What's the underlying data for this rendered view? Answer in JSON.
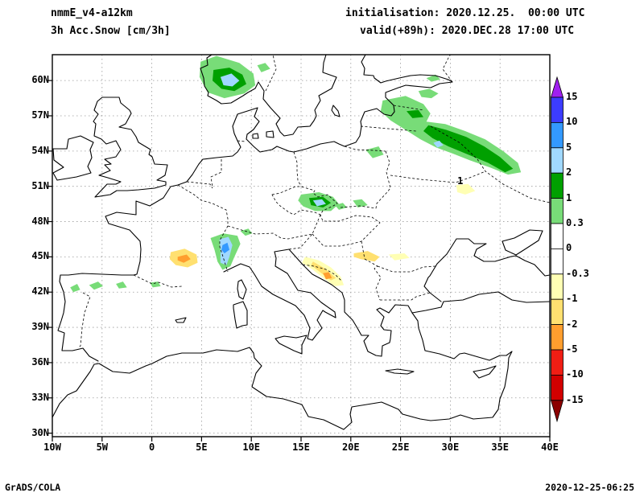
{
  "header": {
    "model": "nmmE_v4-a12km",
    "field": "3h Acc.Snow [cm/3h]",
    "init": "initialisation: 2020.12.25.  00:00 UTC",
    "valid": "valid(+89h): 2020.DEC.28 17:00 UTC"
  },
  "footer": {
    "left": "GrADS/COLA",
    "right": "2020-12-25-06:25"
  },
  "chart_data": {
    "type": "heatmap",
    "title": "3h Acc.Snow [cm/3h]",
    "model": "nmmE_v4-a12km",
    "initialisation": "2020.12.25. 00:00 UTC",
    "valid": "(+89h) 2020.DEC.28 17:00 UTC",
    "units": "cm/3h",
    "map_extent": {
      "lon_min": -10,
      "lon_max": 40,
      "lat_min": 29.7,
      "lat_max": 62.2
    },
    "lon_ticks": [
      "10W",
      "5W",
      "0",
      "5E",
      "10E",
      "15E",
      "20E",
      "25E",
      "30E",
      "35E",
      "40E"
    ],
    "lat_ticks": [
      "30N",
      "33N",
      "36N",
      "39N",
      "42N",
      "45N",
      "48N",
      "51N",
      "54N",
      "57N",
      "60N"
    ],
    "colorbar": {
      "tick_labels": [
        "15",
        "10",
        "5",
        "2",
        "1",
        "0.3",
        "0",
        "-0.3",
        "-1",
        "-2",
        "-5",
        "-10",
        "-15"
      ],
      "colors_top_to_bottom": [
        "#a020f0",
        "#3c3cff",
        "#3399ff",
        "#a0d8ff",
        "#00a000",
        "#78dc78",
        "#ffffff",
        "#ffffff",
        "#ffffb4",
        "#ffe070",
        "#ff9e2e",
        "#f01e14",
        "#d20000",
        "#8c0000"
      ]
    },
    "annotations": [
      {
        "text": "1",
        "lon": 31.0,
        "lat": 51.2
      }
    ],
    "features": [
      {
        "name": "norway-snow-outer",
        "value_range": "0.3-1",
        "color": "#78dc78",
        "points": [
          [
            4.9,
            61.6
          ],
          [
            6.5,
            62.1
          ],
          [
            8.8,
            61.5
          ],
          [
            10.2,
            60.6
          ],
          [
            10.4,
            59.6
          ],
          [
            9.3,
            58.9
          ],
          [
            7.3,
            58.5
          ],
          [
            5.6,
            59.0
          ],
          [
            4.8,
            60.3
          ]
        ]
      },
      {
        "name": "norway-snow-mid",
        "value_range": "1-2",
        "color": "#00a000",
        "points": [
          [
            6.2,
            60.9
          ],
          [
            7.8,
            61.1
          ],
          [
            9.1,
            60.5
          ],
          [
            9.5,
            59.7
          ],
          [
            8.3,
            59.1
          ],
          [
            7.0,
            59.3
          ],
          [
            6.1,
            60.0
          ]
        ]
      },
      {
        "name": "norway-snow-core",
        "value_range": "2-5",
        "color": "#a0d8ff",
        "points": [
          [
            6.9,
            60.3
          ],
          [
            8.0,
            60.6
          ],
          [
            8.8,
            60.0
          ],
          [
            8.1,
            59.5
          ],
          [
            7.2,
            59.6
          ]
        ]
      },
      {
        "name": "sweden-snow-spot",
        "value_range": "0.3-1",
        "color": "#78dc78",
        "points": [
          [
            10.6,
            61.3
          ],
          [
            11.4,
            61.5
          ],
          [
            11.9,
            61.0
          ],
          [
            11.0,
            60.7
          ]
        ]
      },
      {
        "name": "baltics-belarus-snow-outer",
        "value_range": "0.3-1",
        "color": "#78dc78",
        "points": [
          [
            23.2,
            58.3
          ],
          [
            25.5,
            58.7
          ],
          [
            27.3,
            58.0
          ],
          [
            28.0,
            57.2
          ],
          [
            27.6,
            56.5
          ],
          [
            29.5,
            56.3
          ],
          [
            31.5,
            55.7
          ],
          [
            33.5,
            55.0
          ],
          [
            35.3,
            54.0
          ],
          [
            36.8,
            53.0
          ],
          [
            37.1,
            52.2
          ],
          [
            35.8,
            52.0
          ],
          [
            34.0,
            52.6
          ],
          [
            32.0,
            53.2
          ],
          [
            30.2,
            53.8
          ],
          [
            28.6,
            54.3
          ],
          [
            27.0,
            55.0
          ],
          [
            25.5,
            55.8
          ],
          [
            24.0,
            56.6
          ],
          [
            23.0,
            57.4
          ]
        ]
      },
      {
        "name": "latvia-snow-band",
        "value_range": "1-2",
        "color": "#00a000",
        "points": [
          [
            25.6,
            57.4
          ],
          [
            26.8,
            57.5
          ],
          [
            27.3,
            56.9
          ],
          [
            26.2,
            56.8
          ]
        ]
      },
      {
        "name": "belarus-snow-band",
        "value_range": "1-2",
        "color": "#00a000",
        "points": [
          [
            27.8,
            56.2
          ],
          [
            29.6,
            55.8
          ],
          [
            31.6,
            55.2
          ],
          [
            33.4,
            54.4
          ],
          [
            35.0,
            53.5
          ],
          [
            36.3,
            52.5
          ],
          [
            35.5,
            52.2
          ],
          [
            33.8,
            53.0
          ],
          [
            31.8,
            53.7
          ],
          [
            29.8,
            54.4
          ],
          [
            28.2,
            55.1
          ],
          [
            27.3,
            55.7
          ]
        ]
      },
      {
        "name": "belarus-snow-dot",
        "value_range": "2-5",
        "color": "#a0d8ff",
        "points": [
          [
            28.3,
            54.7
          ],
          [
            28.9,
            54.9
          ],
          [
            29.3,
            54.5
          ],
          [
            28.7,
            54.3
          ]
        ]
      },
      {
        "name": "ne-poland-snow-spot",
        "value_range": "0.3-1",
        "color": "#78dc78",
        "points": [
          [
            21.5,
            54.1
          ],
          [
            22.8,
            54.4
          ],
          [
            23.3,
            53.7
          ],
          [
            22.2,
            53.4
          ]
        ]
      },
      {
        "name": "gulf-of-finland-snow",
        "value_range": "0.3-1",
        "color": "#78dc78",
        "points": [
          [
            26.8,
            59.1
          ],
          [
            27.9,
            59.3
          ],
          [
            28.8,
            58.9
          ],
          [
            28.1,
            58.5
          ],
          [
            27.1,
            58.6
          ]
        ]
      },
      {
        "name": "karelia-snow-spot",
        "value_range": "0.3-1",
        "color": "#78dc78",
        "points": [
          [
            27.6,
            60.2
          ],
          [
            28.5,
            60.5
          ],
          [
            29.0,
            60.1
          ],
          [
            28.1,
            59.9
          ]
        ]
      },
      {
        "name": "czech-snow-outer",
        "value_range": "0.3-1",
        "color": "#78dc78",
        "points": [
          [
            15.0,
            50.3
          ],
          [
            16.8,
            50.5
          ],
          [
            18.2,
            50.1
          ],
          [
            18.8,
            49.5
          ],
          [
            18.0,
            48.9
          ],
          [
            16.4,
            48.9
          ],
          [
            15.2,
            49.3
          ],
          [
            14.7,
            49.8
          ]
        ]
      },
      {
        "name": "czech-snow-mid",
        "value_range": "1-2",
        "color": "#00a000",
        "points": [
          [
            15.8,
            50.0
          ],
          [
            17.2,
            50.1
          ],
          [
            18.0,
            49.6
          ],
          [
            17.2,
            49.2
          ],
          [
            16.0,
            49.4
          ]
        ]
      },
      {
        "name": "czech-snow-core",
        "value_range": "2-5",
        "color": "#a0d8ff",
        "points": [
          [
            16.2,
            49.8
          ],
          [
            17.1,
            49.9
          ],
          [
            17.5,
            49.5
          ],
          [
            16.6,
            49.3
          ]
        ]
      },
      {
        "name": "slovakia-snow-spot",
        "value_range": "0.3-1",
        "color": "#78dc78",
        "points": [
          [
            18.4,
            49.4
          ],
          [
            19.2,
            49.6
          ],
          [
            19.6,
            49.2
          ],
          [
            18.8,
            49.0
          ]
        ]
      },
      {
        "name": "tatra-snow-spot",
        "value_range": "0.3-1",
        "color": "#78dc78",
        "points": [
          [
            20.2,
            49.8
          ],
          [
            21.1,
            49.9
          ],
          [
            21.7,
            49.4
          ],
          [
            20.7,
            49.2
          ]
        ]
      },
      {
        "name": "alps-snow-outer",
        "value_range": "0.3-1",
        "color": "#78dc78",
        "points": [
          [
            5.9,
            46.6
          ],
          [
            7.2,
            47.0
          ],
          [
            8.6,
            46.8
          ],
          [
            8.9,
            46.1
          ],
          [
            8.3,
            45.0
          ],
          [
            7.9,
            44.2
          ],
          [
            7.1,
            43.9
          ],
          [
            6.6,
            44.6
          ],
          [
            6.3,
            45.6
          ]
        ]
      },
      {
        "name": "alps-snow-band",
        "value_range": "2-5",
        "color": "#a0d8ff",
        "points": [
          [
            6.8,
            46.5
          ],
          [
            7.7,
            46.7
          ],
          [
            8.1,
            46.0
          ],
          [
            7.8,
            45.0
          ],
          [
            7.5,
            44.3
          ],
          [
            6.9,
            44.5
          ],
          [
            6.9,
            45.5
          ]
        ]
      },
      {
        "name": "alps-snow-core",
        "value_range": "5-10",
        "color": "#3399ff",
        "points": [
          [
            7.1,
            46.0
          ],
          [
            7.6,
            46.2
          ],
          [
            7.8,
            45.6
          ],
          [
            7.3,
            45.3
          ],
          [
            7.0,
            45.6
          ]
        ]
      },
      {
        "name": "alps-east-snow-spot",
        "value_range": "0.3-1",
        "color": "#78dc78",
        "points": [
          [
            8.9,
            47.2
          ],
          [
            9.7,
            47.4
          ],
          [
            10.1,
            47.0
          ],
          [
            9.4,
            46.8
          ]
        ]
      },
      {
        "name": "spain-snow-spot-1",
        "value_range": "0.3-1",
        "color": "#78dc78",
        "points": [
          [
            -8.2,
            42.4
          ],
          [
            -7.5,
            42.7
          ],
          [
            -7.2,
            42.2
          ],
          [
            -7.9,
            42.0
          ]
        ]
      },
      {
        "name": "spain-snow-spot-2",
        "value_range": "0.3-1",
        "color": "#78dc78",
        "points": [
          [
            -6.3,
            42.6
          ],
          [
            -5.4,
            42.9
          ],
          [
            -4.9,
            42.5
          ],
          [
            -5.8,
            42.2
          ]
        ]
      },
      {
        "name": "spain-snow-spot-3",
        "value_range": "0.3-1",
        "color": "#78dc78",
        "points": [
          [
            -3.6,
            42.7
          ],
          [
            -2.9,
            42.9
          ],
          [
            -2.5,
            42.4
          ],
          [
            -3.3,
            42.3
          ]
        ]
      },
      {
        "name": "pyrenees-snow-spot",
        "value_range": "0.3-1",
        "color": "#78dc78",
        "points": [
          [
            -0.2,
            42.8
          ],
          [
            0.6,
            42.9
          ],
          [
            0.9,
            42.5
          ],
          [
            0.1,
            42.4
          ]
        ]
      },
      {
        "name": "france-negative-outer",
        "value_range": "-1 to -2",
        "color": "#ffe070",
        "points": [
          [
            1.9,
            45.4
          ],
          [
            3.3,
            45.7
          ],
          [
            4.5,
            45.2
          ],
          [
            4.6,
            44.5
          ],
          [
            3.6,
            44.1
          ],
          [
            2.4,
            44.3
          ],
          [
            1.8,
            44.8
          ]
        ]
      },
      {
        "name": "france-negative-core",
        "value_range": "-2 to -5",
        "color": "#ff9e2e",
        "points": [
          [
            2.6,
            45.0
          ],
          [
            3.5,
            45.2
          ],
          [
            3.9,
            44.8
          ],
          [
            3.2,
            44.5
          ],
          [
            2.6,
            44.7
          ]
        ]
      },
      {
        "name": "dinarides-negative-outer",
        "value_range": "-0.3 to -1",
        "color": "#ffffb4",
        "points": [
          [
            15.4,
            45.0
          ],
          [
            16.8,
            44.7
          ],
          [
            18.0,
            44.1
          ],
          [
            19.0,
            43.3
          ],
          [
            19.3,
            42.6
          ],
          [
            18.4,
            42.5
          ],
          [
            17.4,
            43.1
          ],
          [
            16.2,
            43.9
          ],
          [
            15.1,
            44.5
          ]
        ]
      },
      {
        "name": "dinarides-negative-band",
        "value_range": "-1 to -2",
        "color": "#ffe070",
        "points": [
          [
            16.2,
            44.6
          ],
          [
            17.4,
            44.0
          ],
          [
            18.5,
            43.2
          ],
          [
            18.0,
            43.0
          ],
          [
            16.9,
            43.7
          ],
          [
            16.0,
            44.3
          ]
        ]
      },
      {
        "name": "dinarides-negative-spot",
        "value_range": "-2 to -5",
        "color": "#ff9e2e",
        "points": [
          [
            17.2,
            43.6
          ],
          [
            17.8,
            43.7
          ],
          [
            18.1,
            43.2
          ],
          [
            17.5,
            43.1
          ]
        ]
      },
      {
        "name": "serbia-negative-patch",
        "value_range": "-1 to -2",
        "color": "#ffe070",
        "points": [
          [
            20.3,
            45.3
          ],
          [
            21.7,
            45.5
          ],
          [
            22.9,
            45.0
          ],
          [
            22.4,
            44.6
          ],
          [
            21.0,
            44.8
          ],
          [
            20.3,
            45.0
          ]
        ]
      },
      {
        "name": "romania-negative-patch",
        "value_range": "-0.3 to -1",
        "color": "#ffffb4",
        "points": [
          [
            23.8,
            45.2
          ],
          [
            25.4,
            45.3
          ],
          [
            25.9,
            44.9
          ],
          [
            24.4,
            44.7
          ]
        ]
      },
      {
        "name": "ukraine-negative-patch",
        "value_range": "-0.3 to -1",
        "color": "#ffffb4",
        "points": [
          [
            30.6,
            51.1
          ],
          [
            31.8,
            51.2
          ],
          [
            32.5,
            50.6
          ],
          [
            31.5,
            50.3
          ],
          [
            30.7,
            50.5
          ]
        ]
      }
    ]
  }
}
